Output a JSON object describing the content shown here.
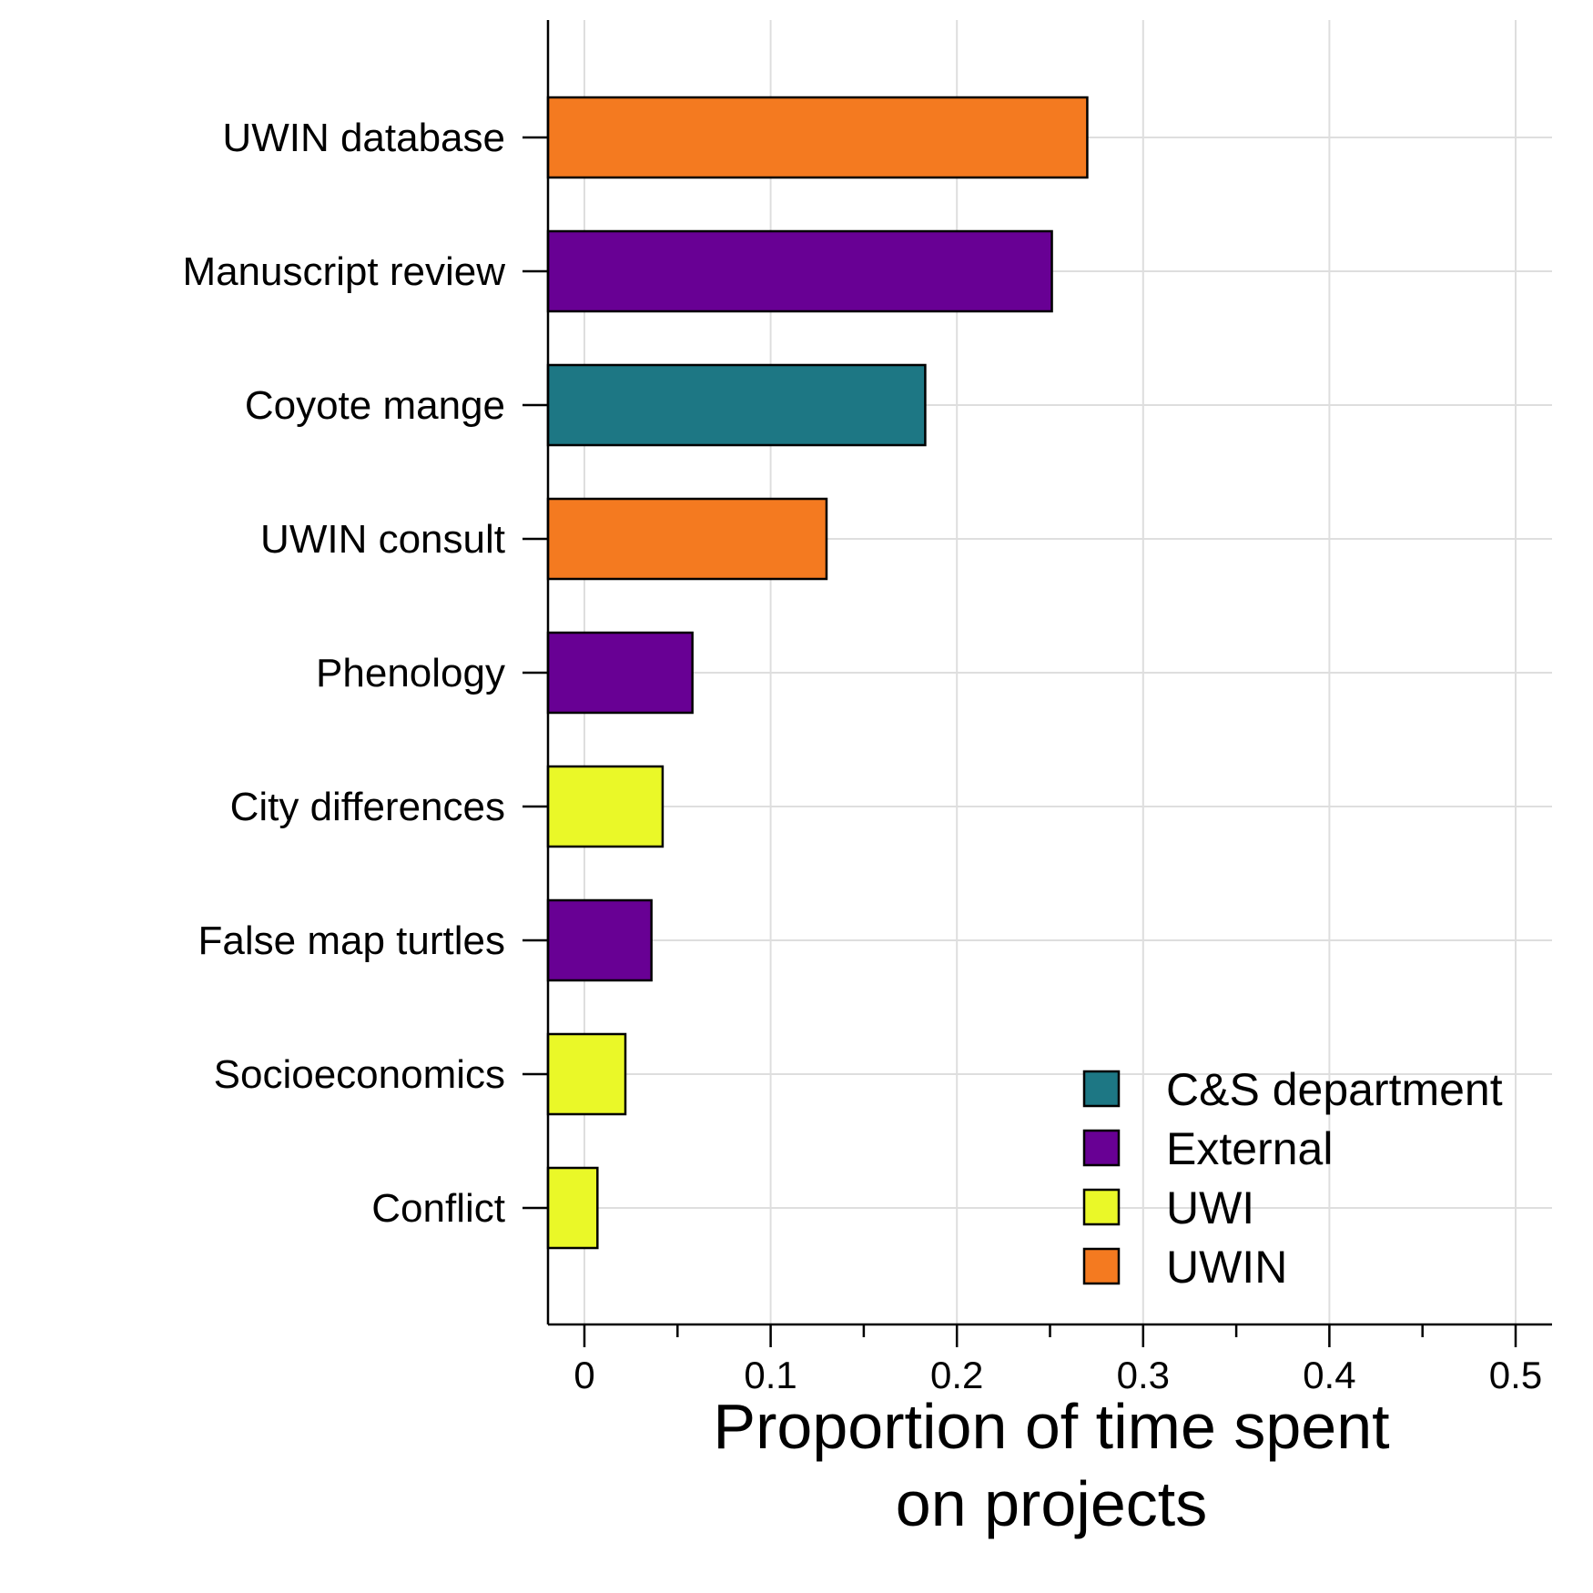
{
  "chart_data": {
    "type": "bar",
    "orientation": "horizontal",
    "title": "",
    "xlabel": [
      "Proportion of time spent",
      "on projects"
    ],
    "ylabel": "",
    "xlim": [
      -0.02,
      0.52
    ],
    "xticks": [
      0,
      0.1,
      0.2,
      0.3,
      0.4,
      0.5
    ],
    "xtick_labels": [
      "0",
      "0.1",
      "0.2",
      "0.3",
      "0.4",
      "0.5"
    ],
    "grid": true,
    "legend_position": "bottom-right",
    "categories": [
      "UWIN database",
      "Manuscript review",
      "Coyote mange",
      "UWIN consult",
      "Phenology",
      "City differences",
      "False map turtles",
      "Socioeconomics",
      "Conflict"
    ],
    "values": [
      0.27,
      0.251,
      0.183,
      0.13,
      0.058,
      0.042,
      0.036,
      0.022,
      0.007
    ],
    "groups": [
      "UWIN",
      "External",
      "C&S department",
      "UWIN",
      "External",
      "UWI",
      "External",
      "UWI",
      "UWI"
    ],
    "legend": [
      {
        "name": "C&S department",
        "color": "#1d7784"
      },
      {
        "name": "External",
        "color": "#680094"
      },
      {
        "name": "UWI",
        "color": "#eaf828"
      },
      {
        "name": "UWIN",
        "color": "#f47a20"
      }
    ]
  }
}
